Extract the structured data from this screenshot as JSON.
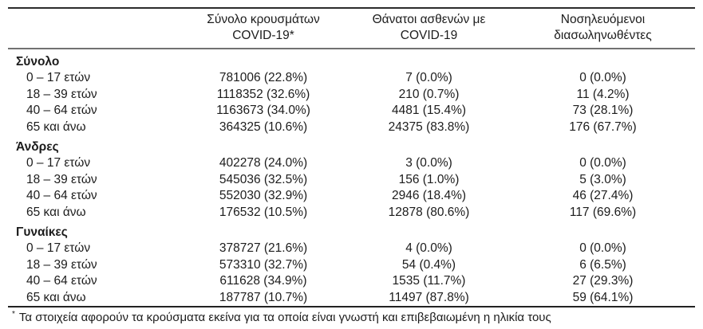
{
  "table": {
    "columns": [
      {
        "line1": "Σύνολο κρουσμάτων",
        "line2": "COVID-19*"
      },
      {
        "line1": "Θάνατοι ασθενών με",
        "line2": "COVID-19"
      },
      {
        "line1": "Νοσηλευόμενοι",
        "line2": "διασωληνωθέντες"
      }
    ],
    "groups": [
      {
        "label": "Σύνολο",
        "rows": [
          {
            "age": "0 – 17 ετών",
            "cases": "781006 (22.8%)",
            "deaths": "7 (0.0%)",
            "intubated": "0 (0.0%)"
          },
          {
            "age": "18 – 39 ετών",
            "cases": "1118352 (32.6%)",
            "deaths": "210 (0.7%)",
            "intubated": "11 (4.2%)"
          },
          {
            "age": "40 – 64 ετών",
            "cases": "1163673 (34.0%)",
            "deaths": "4481 (15.4%)",
            "intubated": "73 (28.1%)"
          },
          {
            "age": "65 και άνω",
            "cases": "364325 (10.6%)",
            "deaths": "24375 (83.8%)",
            "intubated": "176 (67.7%)"
          }
        ]
      },
      {
        "label": "Άνδρες",
        "rows": [
          {
            "age": "0 – 17 ετών",
            "cases": "402278 (24.0%)",
            "deaths": "3 (0.0%)",
            "intubated": "0 (0.0%)"
          },
          {
            "age": "18 – 39 ετών",
            "cases": "545036 (32.5%)",
            "deaths": "156 (1.0%)",
            "intubated": "5 (3.0%)"
          },
          {
            "age": "40 – 64 ετών",
            "cases": "552030 (32.9%)",
            "deaths": "2946 (18.4%)",
            "intubated": "46 (27.4%)"
          },
          {
            "age": "65 και άνω",
            "cases": "176532 (10.5%)",
            "deaths": "12878 (80.6%)",
            "intubated": "117 (69.6%)"
          }
        ]
      },
      {
        "label": "Γυναίκες",
        "rows": [
          {
            "age": "0 – 17 ετών",
            "cases": "378727 (21.6%)",
            "deaths": "4 (0.0%)",
            "intubated": "0 (0.0%)"
          },
          {
            "age": "18 – 39 ετών",
            "cases": "573310 (32.7%)",
            "deaths": "54 (0.4%)",
            "intubated": "6 (6.5%)"
          },
          {
            "age": "40 – 64 ετών",
            "cases": "611628 (34.9%)",
            "deaths": "1535 (11.7%)",
            "intubated": "27 (29.3%)"
          },
          {
            "age": "65 και άνω",
            "cases": "187787 (10.7%)",
            "deaths": "11497 (87.8%)",
            "intubated": "59 (64.1%)"
          }
        ]
      }
    ],
    "footnote": {
      "marker": "*",
      "text": "Τα στοιχεία αφορούν τα κρούσματα εκείνα για τα οποία είναι γνωστή και επιβεβαιωμένη η ηλικία τους"
    }
  }
}
